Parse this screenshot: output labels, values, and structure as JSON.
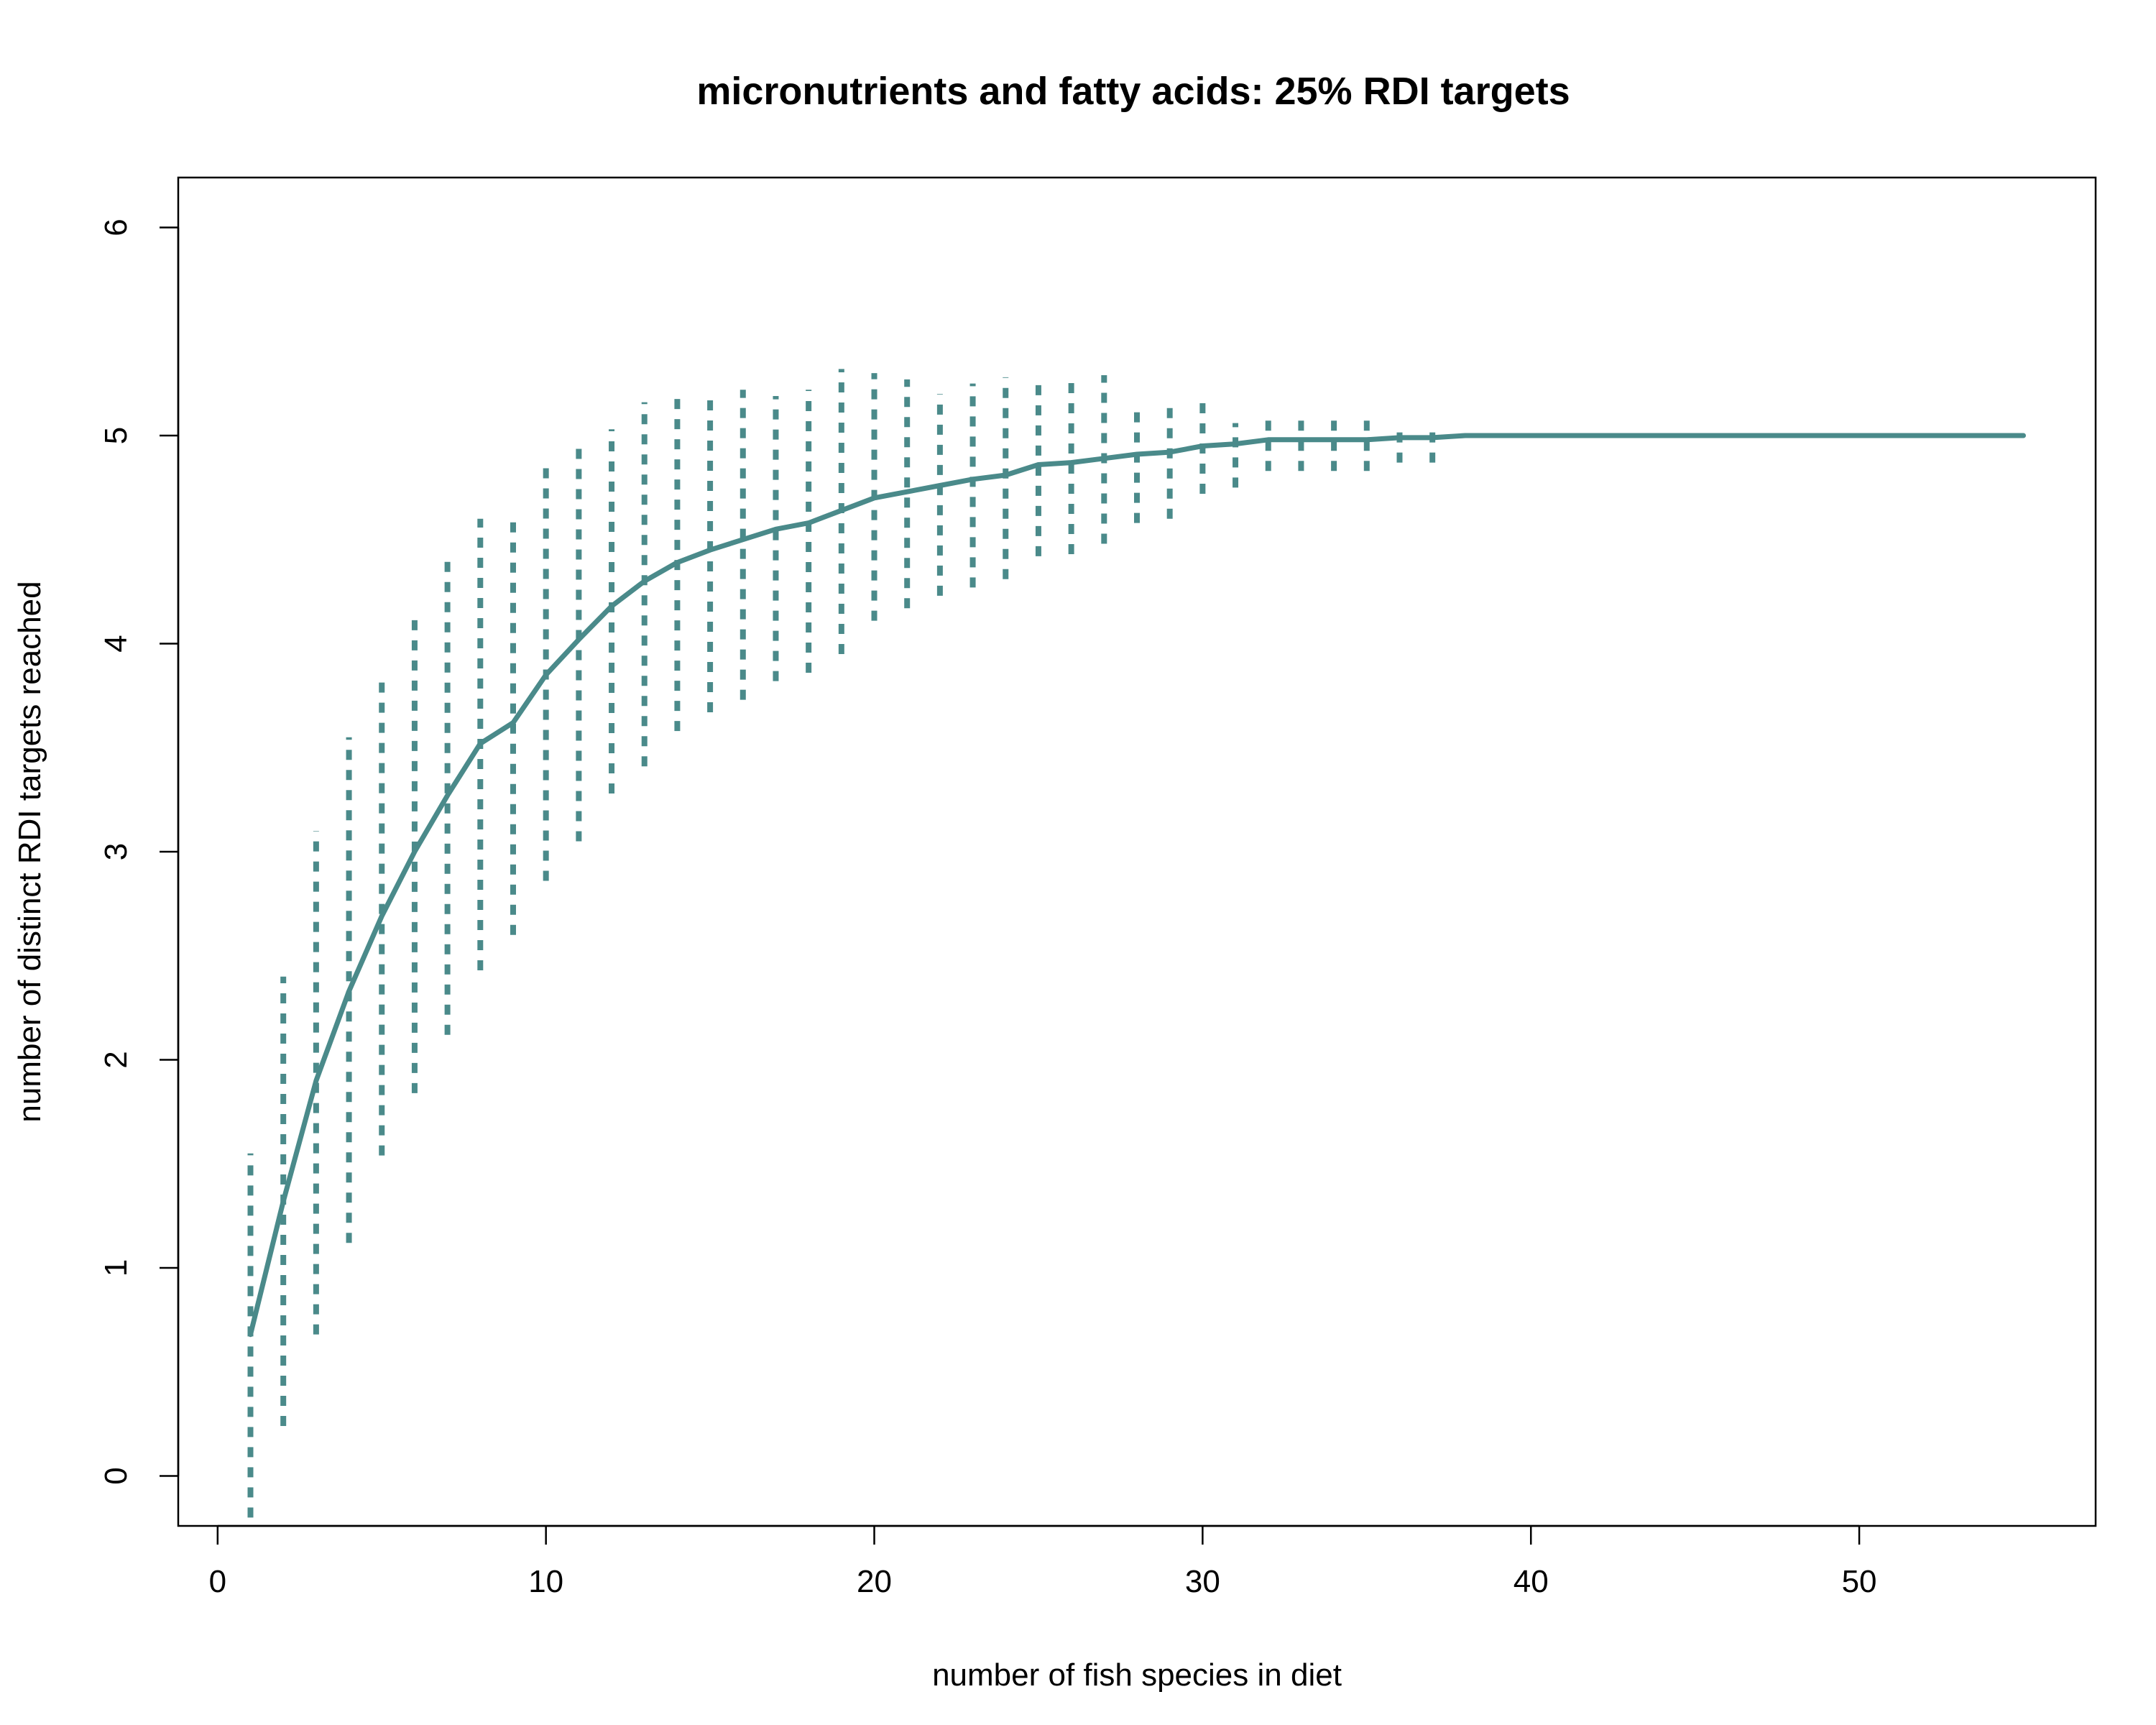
{
  "chart_data": {
    "type": "line",
    "title": "micronutrients and fatty acids: 25% RDI targets",
    "xlabel": "number of fish species in diet",
    "ylabel": "number of distinct RDI targets reached",
    "xlim": [
      -1.2,
      57.2
    ],
    "ylim": [
      -0.24,
      6.24
    ],
    "x_ticks": [
      0,
      10,
      20,
      30,
      40,
      50
    ],
    "y_ticks": [
      0,
      1,
      2,
      3,
      4,
      5,
      6
    ],
    "grid": false,
    "legend": "none",
    "color": "#4a8a8a",
    "series": [
      {
        "kind": "mean",
        "x": [
          1,
          2,
          3,
          4,
          5,
          6,
          7,
          8,
          9,
          10,
          11,
          12,
          13,
          14,
          15,
          16,
          17,
          18,
          19,
          20,
          21,
          22,
          23,
          24,
          25,
          26,
          27,
          28,
          29,
          30,
          31,
          32,
          33,
          34,
          35,
          36,
          37,
          38,
          39,
          40,
          41,
          42,
          43,
          44,
          45,
          46,
          47,
          48,
          49,
          50,
          51,
          52,
          53,
          54,
          55
        ],
        "y": [
          0.68,
          1.32,
          1.9,
          2.33,
          2.69,
          3.0,
          3.27,
          3.52,
          3.62,
          3.85,
          4.02,
          4.18,
          4.3,
          4.39,
          4.45,
          4.5,
          4.55,
          4.58,
          4.64,
          4.7,
          4.73,
          4.76,
          4.79,
          4.81,
          4.86,
          4.87,
          4.89,
          4.91,
          4.92,
          4.95,
          4.96,
          4.98,
          4.98,
          4.98,
          4.98,
          4.99,
          4.99,
          5.0,
          5.0,
          5.0,
          5.0,
          5.0,
          5.0,
          5.0,
          5.0,
          5.0,
          5.0,
          5.0,
          5.0,
          5.0,
          5.0,
          5.0,
          5.0,
          5.0,
          5.0
        ]
      },
      {
        "kind": "range",
        "x": [
          1,
          2,
          3,
          4,
          5,
          6,
          7,
          8,
          9,
          10,
          11,
          12,
          13,
          14,
          15,
          16,
          17,
          18,
          19,
          20,
          21,
          22,
          23,
          24,
          25,
          26,
          27,
          28,
          29,
          30,
          31,
          32,
          33,
          34,
          35,
          36,
          37
        ],
        "low": [
          -0.2,
          0.24,
          0.68,
          1.12,
          1.54,
          1.84,
          2.12,
          2.43,
          2.6,
          2.86,
          3.05,
          3.28,
          3.41,
          3.58,
          3.67,
          3.73,
          3.82,
          3.86,
          3.95,
          4.11,
          4.17,
          4.23,
          4.27,
          4.31,
          4.42,
          4.43,
          4.48,
          4.58,
          4.6,
          4.72,
          4.75,
          4.83,
          4.83,
          4.83,
          4.83,
          4.87,
          4.87
        ],
        "high": [
          1.55,
          2.4,
          3.1,
          3.55,
          3.82,
          4.14,
          4.41,
          4.6,
          4.62,
          4.87,
          4.94,
          5.03,
          5.16,
          5.2,
          5.17,
          5.22,
          5.19,
          5.22,
          5.32,
          5.3,
          5.27,
          5.2,
          5.25,
          5.28,
          5.26,
          5.28,
          5.29,
          5.16,
          5.17,
          5.16,
          5.06,
          5.12,
          5.12,
          5.12,
          5.12,
          5.06,
          5.06
        ]
      }
    ]
  }
}
